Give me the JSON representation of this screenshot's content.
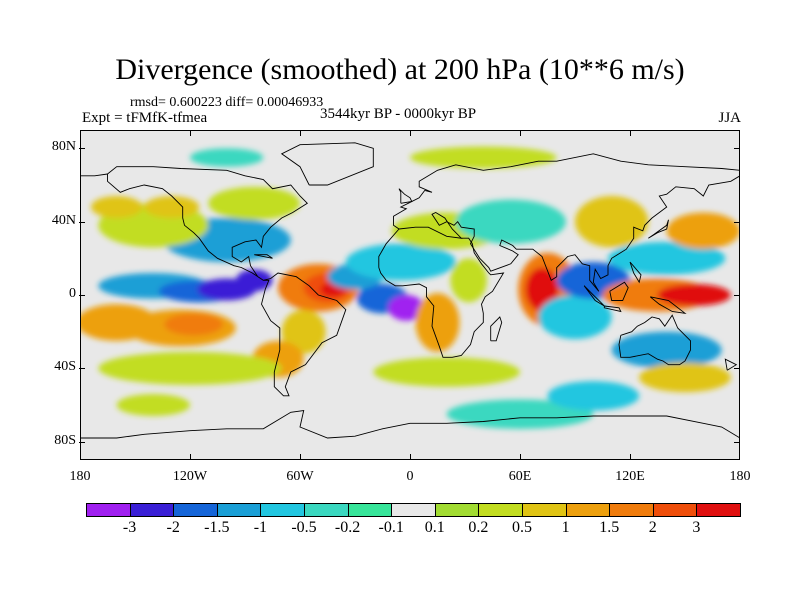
{
  "title": "Divergence (smoothed) at 200 hPa (10**6 m/s)",
  "stats": "rmsd= 0.600223 diff= 0.00046933",
  "experiment": "Expt = tFMfK-tfmea",
  "period": "3544kyr BP - 0000kyr BP",
  "season": "JJA",
  "map": {
    "lon_range": [
      -180,
      180
    ],
    "lat_range": [
      -90,
      90
    ],
    "lat_ticks": [
      80,
      40,
      0,
      -40,
      -80
    ],
    "lat_labels": [
      "80N",
      "40N",
      "0",
      "40S",
      "80S"
    ],
    "lon_ticks": [
      -180,
      -120,
      -60,
      0,
      60,
      120,
      180
    ],
    "lon_labels": [
      "180",
      "120W",
      "60W",
      "0",
      "60E",
      "120E",
      "180"
    ],
    "background_color": "#e8e8e8"
  },
  "colorbar": {
    "colors": [
      "#a020f0",
      "#3a1fd6",
      "#1565d8",
      "#1a9fd6",
      "#22c6e0",
      "#3ad8c0",
      "#37e59a",
      "#e8e8e8",
      "#a2dc32",
      "#c2dd20",
      "#e0c414",
      "#eda00e",
      "#f07c0c",
      "#ef4e0a",
      "#e01010"
    ],
    "labels": [
      "-3",
      "-2",
      "-1.5",
      "-1",
      "-0.5",
      "-0.2",
      "-0.1",
      "0.1",
      "0.2",
      "0.5",
      "1",
      "1.5",
      "2",
      "3"
    ]
  },
  "field_blobs": [
    {
      "lon": -160,
      "lat": -15,
      "rx": 22,
      "ry": 10,
      "level": 11
    },
    {
      "lon": -125,
      "lat": -18,
      "rx": 30,
      "ry": 10,
      "level": 11
    },
    {
      "lon": -118,
      "lat": -16,
      "rx": 16,
      "ry": 6,
      "level": 12
    },
    {
      "lon": -140,
      "lat": 5,
      "rx": 30,
      "ry": 7,
      "level": 3
    },
    {
      "lon": -115,
      "lat": 2,
      "rx": 22,
      "ry": 6,
      "level": 2
    },
    {
      "lon": -100,
      "lat": 3,
      "rx": 16,
      "ry": 6,
      "level": 1
    },
    {
      "lon": -85,
      "lat": 8,
      "rx": 10,
      "ry": 6,
      "level": 1
    },
    {
      "lon": -100,
      "lat": 30,
      "rx": 35,
      "ry": 12,
      "level": 3
    },
    {
      "lon": -140,
      "lat": 38,
      "rx": 30,
      "ry": 12,
      "level": 9
    },
    {
      "lon": -160,
      "lat": 48,
      "rx": 14,
      "ry": 6,
      "level": 10
    },
    {
      "lon": -130,
      "lat": 48,
      "rx": 15,
      "ry": 6,
      "level": 10
    },
    {
      "lon": -85,
      "lat": 50,
      "rx": 25,
      "ry": 9,
      "level": 9
    },
    {
      "lon": -50,
      "lat": 4,
      "rx": 22,
      "ry": 13,
      "level": 12
    },
    {
      "lon": -45,
      "lat": 4,
      "rx": 13,
      "ry": 8,
      "level": 13
    },
    {
      "lon": -42,
      "lat": 3,
      "rx": 7,
      "ry": 4,
      "level": 14
    },
    {
      "lon": -58,
      "lat": -20,
      "rx": 12,
      "ry": 12,
      "level": 10
    },
    {
      "lon": -72,
      "lat": -35,
      "rx": 14,
      "ry": 10,
      "level": 11
    },
    {
      "lon": -15,
      "lat": -2,
      "rx": 14,
      "ry": 8,
      "level": 2
    },
    {
      "lon": -2,
      "lat": -7,
      "rx": 10,
      "ry": 7,
      "level": 0
    },
    {
      "lon": -30,
      "lat": 10,
      "rx": 15,
      "ry": 7,
      "level": 3
    },
    {
      "lon": -5,
      "lat": 18,
      "rx": 30,
      "ry": 10,
      "level": 4
    },
    {
      "lon": 15,
      "lat": -15,
      "rx": 12,
      "ry": 16,
      "level": 11
    },
    {
      "lon": 32,
      "lat": 8,
      "rx": 10,
      "ry": 12,
      "level": 9
    },
    {
      "lon": 20,
      "lat": 35,
      "rx": 30,
      "ry": 10,
      "level": 9
    },
    {
      "lon": 55,
      "lat": 40,
      "rx": 30,
      "ry": 12,
      "level": 5
    },
    {
      "lon": 75,
      "lat": 3,
      "rx": 16,
      "ry": 20,
      "level": 12
    },
    {
      "lon": 72,
      "lat": 3,
      "rx": 9,
      "ry": 12,
      "level": 14
    },
    {
      "lon": 90,
      "lat": -12,
      "rx": 20,
      "ry": 12,
      "level": 4
    },
    {
      "lon": 100,
      "lat": 8,
      "rx": 20,
      "ry": 10,
      "level": 2
    },
    {
      "lon": 110,
      "lat": 40,
      "rx": 20,
      "ry": 14,
      "level": 10
    },
    {
      "lon": 140,
      "lat": 20,
      "rx": 32,
      "ry": 9,
      "level": 4
    },
    {
      "lon": 135,
      "lat": 0,
      "rx": 30,
      "ry": 9,
      "level": 12
    },
    {
      "lon": 155,
      "lat": 0,
      "rx": 20,
      "ry": 6,
      "level": 14
    },
    {
      "lon": 140,
      "lat": -30,
      "rx": 30,
      "ry": 10,
      "level": 3
    },
    {
      "lon": 160,
      "lat": 35,
      "rx": 20,
      "ry": 10,
      "level": 11
    },
    {
      "lon": -120,
      "lat": -40,
      "rx": 50,
      "ry": 9,
      "level": 9
    },
    {
      "lon": 20,
      "lat": -42,
      "rx": 40,
      "ry": 8,
      "level": 9
    },
    {
      "lon": 150,
      "lat": -45,
      "rx": 25,
      "ry": 8,
      "level": 10
    },
    {
      "lon": 60,
      "lat": -65,
      "rx": 40,
      "ry": 8,
      "level": 5
    },
    {
      "lon": 100,
      "lat": -55,
      "rx": 25,
      "ry": 8,
      "level": 4
    },
    {
      "lon": -140,
      "lat": -60,
      "rx": 20,
      "ry": 6,
      "level": 9
    },
    {
      "lon": 40,
      "lat": 75,
      "rx": 40,
      "ry": 6,
      "level": 9
    },
    {
      "lon": -100,
      "lat": 75,
      "rx": 20,
      "ry": 5,
      "level": 5
    }
  ],
  "coastlines": [
    [
      [
        -165,
        66
      ],
      [
        -160,
        70
      ],
      [
        -140,
        70
      ],
      [
        -125,
        69
      ],
      [
        -100,
        68
      ],
      [
        -90,
        65
      ],
      [
        -80,
        63
      ],
      [
        -75,
        58
      ],
      [
        -65,
        60
      ],
      [
        -60,
        54
      ],
      [
        -56,
        50
      ],
      [
        -64,
        45
      ],
      [
        -70,
        42
      ],
      [
        -76,
        37
      ],
      [
        -80,
        32
      ],
      [
        -81,
        26
      ],
      [
        -84,
        30
      ],
      [
        -90,
        29
      ],
      [
        -97,
        26
      ],
      [
        -97,
        21
      ],
      [
        -92,
        18
      ],
      [
        -88,
        21
      ],
      [
        -87,
        16
      ],
      [
        -83,
        10
      ],
      [
        -80,
        8
      ],
      [
        -77,
        8
      ],
      [
        -79,
        3
      ],
      [
        -81,
        -5
      ],
      [
        -76,
        -14
      ],
      [
        -71,
        -18
      ],
      [
        -71,
        -30
      ],
      [
        -74,
        -42
      ],
      [
        -74,
        -50
      ],
      [
        -69,
        -55
      ],
      [
        -66,
        -55
      ],
      [
        -68,
        -50
      ],
      [
        -65,
        -42
      ],
      [
        -57,
        -38
      ],
      [
        -48,
        -26
      ],
      [
        -40,
        -22
      ],
      [
        -35,
        -8
      ],
      [
        -40,
        -3
      ],
      [
        -50,
        0
      ],
      [
        -55,
        5
      ],
      [
        -62,
        10
      ],
      [
        -72,
        12
      ],
      [
        -76,
        9
      ],
      [
        -80,
        8
      ],
      [
        -86,
        12
      ],
      [
        -92,
        15
      ],
      [
        -96,
        16
      ],
      [
        -105,
        20
      ],
      [
        -110,
        24
      ],
      [
        -115,
        31
      ],
      [
        -118,
        34
      ],
      [
        -123,
        38
      ],
      [
        -124,
        42
      ],
      [
        -124,
        48
      ],
      [
        -130,
        54
      ],
      [
        -135,
        58
      ],
      [
        -145,
        60
      ],
      [
        -153,
        58
      ],
      [
        -158,
        56
      ],
      [
        -165,
        62
      ],
      [
        -165,
        66
      ]
    ],
    [
      [
        -17,
        15
      ],
      [
        -17,
        21
      ],
      [
        -13,
        28
      ],
      [
        -6,
        36
      ],
      [
        -9,
        38
      ],
      [
        -9,
        43
      ],
      [
        -2,
        47
      ],
      [
        -5,
        48
      ],
      [
        -1,
        50
      ],
      [
        5,
        53
      ],
      [
        8,
        57
      ],
      [
        12,
        56
      ],
      [
        5,
        59
      ],
      [
        5,
        62
      ],
      [
        15,
        68
      ],
      [
        25,
        71
      ],
      [
        40,
        68
      ],
      [
        55,
        70
      ],
      [
        70,
        73
      ],
      [
        80,
        73
      ],
      [
        100,
        77
      ],
      [
        115,
        73
      ],
      [
        130,
        71
      ],
      [
        150,
        70
      ],
      [
        170,
        69
      ],
      [
        180,
        68
      ]
    ],
    [
      [
        -180,
        65
      ],
      [
        -172,
        65
      ],
      [
        -165,
        66
      ]
    ],
    [
      [
        180,
        65
      ],
      [
        175,
        62
      ],
      [
        163,
        60
      ],
      [
        160,
        54
      ],
      [
        155,
        58
      ],
      [
        145,
        59
      ],
      [
        140,
        55
      ],
      [
        136,
        54
      ],
      [
        140,
        48
      ],
      [
        132,
        42
      ],
      [
        128,
        38
      ],
      [
        127,
        35
      ],
      [
        122,
        37
      ],
      [
        122,
        31
      ],
      [
        118,
        25
      ],
      [
        110,
        20
      ],
      [
        108,
        16
      ],
      [
        108,
        11
      ],
      [
        104,
        9
      ],
      [
        101,
        14
      ],
      [
        100,
        7
      ],
      [
        103,
        2
      ],
      [
        98,
        8
      ],
      [
        98,
        16
      ],
      [
        94,
        17
      ],
      [
        90,
        22
      ],
      [
        86,
        21
      ],
      [
        80,
        15
      ],
      [
        80,
        10
      ],
      [
        77,
        8
      ],
      [
        72,
        21
      ],
      [
        67,
        25
      ],
      [
        58,
        25
      ],
      [
        56,
        27
      ],
      [
        50,
        30
      ],
      [
        49,
        27
      ],
      [
        56,
        24
      ],
      [
        59,
        22
      ],
      [
        55,
        17
      ],
      [
        44,
        13
      ],
      [
        43,
        15
      ],
      [
        38,
        20
      ],
      [
        33,
        28
      ],
      [
        35,
        32
      ],
      [
        35,
        36
      ],
      [
        28,
        37
      ],
      [
        26,
        40
      ],
      [
        24,
        38
      ],
      [
        20,
        40
      ],
      [
        16,
        38
      ],
      [
        12,
        44
      ],
      [
        14,
        45
      ],
      [
        19,
        42
      ],
      [
        23,
        36
      ],
      [
        28,
        31
      ],
      [
        20,
        32
      ],
      [
        10,
        37
      ],
      [
        3,
        37
      ],
      [
        -6,
        36
      ]
    ],
    [
      [
        -17,
        15
      ],
      [
        -16,
        12
      ],
      [
        -13,
        8
      ],
      [
        -8,
        5
      ],
      [
        -4,
        5
      ],
      [
        5,
        6
      ],
      [
        9,
        4
      ],
      [
        9,
        -1
      ],
      [
        13,
        -6
      ],
      [
        12,
        -17
      ],
      [
        16,
        -28
      ],
      [
        18,
        -34
      ],
      [
        23,
        -34
      ],
      [
        28,
        -33
      ],
      [
        33,
        -27
      ],
      [
        35,
        -20
      ],
      [
        40,
        -15
      ],
      [
        40,
        -10
      ],
      [
        39,
        -5
      ],
      [
        41,
        -1
      ],
      [
        45,
        2
      ],
      [
        51,
        12
      ],
      [
        44,
        11
      ],
      [
        43,
        12
      ],
      [
        39,
        17
      ],
      [
        35,
        23
      ],
      [
        34,
        28
      ],
      [
        32,
        31
      ],
      [
        28,
        31
      ]
    ],
    [
      [
        115,
        -22
      ],
      [
        114,
        -27
      ],
      [
        115,
        -34
      ],
      [
        120,
        -34
      ],
      [
        130,
        -32
      ],
      [
        135,
        -35
      ],
      [
        138,
        -36
      ],
      [
        141,
        -38
      ],
      [
        147,
        -38
      ],
      [
        150,
        -36
      ],
      [
        153,
        -30
      ],
      [
        153,
        -25
      ],
      [
        146,
        -18
      ],
      [
        143,
        -11
      ],
      [
        139,
        -17
      ],
      [
        136,
        -13
      ],
      [
        132,
        -12
      ],
      [
        128,
        -15
      ],
      [
        124,
        -17
      ],
      [
        121,
        -20
      ],
      [
        115,
        -22
      ]
    ],
    [
      [
        -180,
        -78
      ],
      [
        -160,
        -78
      ],
      [
        -145,
        -76
      ],
      [
        -120,
        -74
      ],
      [
        -100,
        -73
      ],
      [
        -80,
        -73
      ],
      [
        -65,
        -64
      ],
      [
        -58,
        -63
      ],
      [
        -60,
        -72
      ],
      [
        -45,
        -78
      ],
      [
        -30,
        -77
      ],
      [
        -15,
        -73
      ],
      [
        0,
        -70
      ],
      [
        20,
        -70
      ],
      [
        40,
        -69
      ],
      [
        60,
        -67
      ],
      [
        80,
        -67
      ],
      [
        100,
        -66
      ],
      [
        120,
        -66
      ],
      [
        140,
        -66
      ],
      [
        160,
        -70
      ],
      [
        170,
        -72
      ],
      [
        180,
        -78
      ]
    ],
    [
      [
        95,
        5
      ],
      [
        100,
        0
      ],
      [
        104,
        -4
      ],
      [
        106,
        -6
      ],
      [
        101,
        -3
      ],
      [
        95,
        5
      ]
    ],
    [
      [
        106,
        -6
      ],
      [
        114,
        -7
      ],
      [
        115,
        -9
      ],
      [
        106,
        -7
      ],
      [
        106,
        -6
      ]
    ],
    [
      [
        109,
        2
      ],
      [
        117,
        7
      ],
      [
        119,
        4
      ],
      [
        116,
        -3
      ],
      [
        110,
        -3
      ],
      [
        109,
        2
      ]
    ],
    [
      [
        131,
        -1
      ],
      [
        141,
        -3
      ],
      [
        150,
        -10
      ],
      [
        143,
        -9
      ],
      [
        136,
        -5
      ],
      [
        131,
        -1
      ]
    ],
    [
      [
        44,
        -25
      ],
      [
        47,
        -25
      ],
      [
        50,
        -15
      ],
      [
        49,
        -12
      ],
      [
        44,
        -17
      ],
      [
        44,
        -25
      ]
    ],
    [
      [
        -5,
        50
      ],
      [
        1,
        51
      ],
      [
        0,
        53
      ],
      [
        -3,
        55
      ],
      [
        -6,
        58
      ],
      [
        -5,
        56
      ],
      [
        -5,
        50
      ]
    ],
    [
      [
        -55,
        60
      ],
      [
        -45,
        60
      ],
      [
        -20,
        70
      ],
      [
        -20,
        80
      ],
      [
        -30,
        83
      ],
      [
        -60,
        82
      ],
      [
        -70,
        77
      ],
      [
        -60,
        70
      ],
      [
        -55,
        60
      ]
    ],
    [
      [
        130,
        31
      ],
      [
        135,
        34
      ],
      [
        140,
        36
      ],
      [
        141,
        41
      ],
      [
        140,
        38
      ],
      [
        133,
        33
      ],
      [
        130,
        31
      ]
    ],
    [
      [
        -85,
        22
      ],
      [
        -75,
        20
      ],
      [
        -78,
        22
      ],
      [
        -85,
        22
      ]
    ],
    [
      [
        173,
        -41
      ],
      [
        178,
        -38
      ],
      [
        172,
        -35
      ],
      [
        173,
        -41
      ]
    ],
    [
      [
        120,
        18
      ],
      [
        122,
        12
      ],
      [
        125,
        7
      ],
      [
        126,
        11
      ],
      [
        120,
        18
      ]
    ]
  ]
}
